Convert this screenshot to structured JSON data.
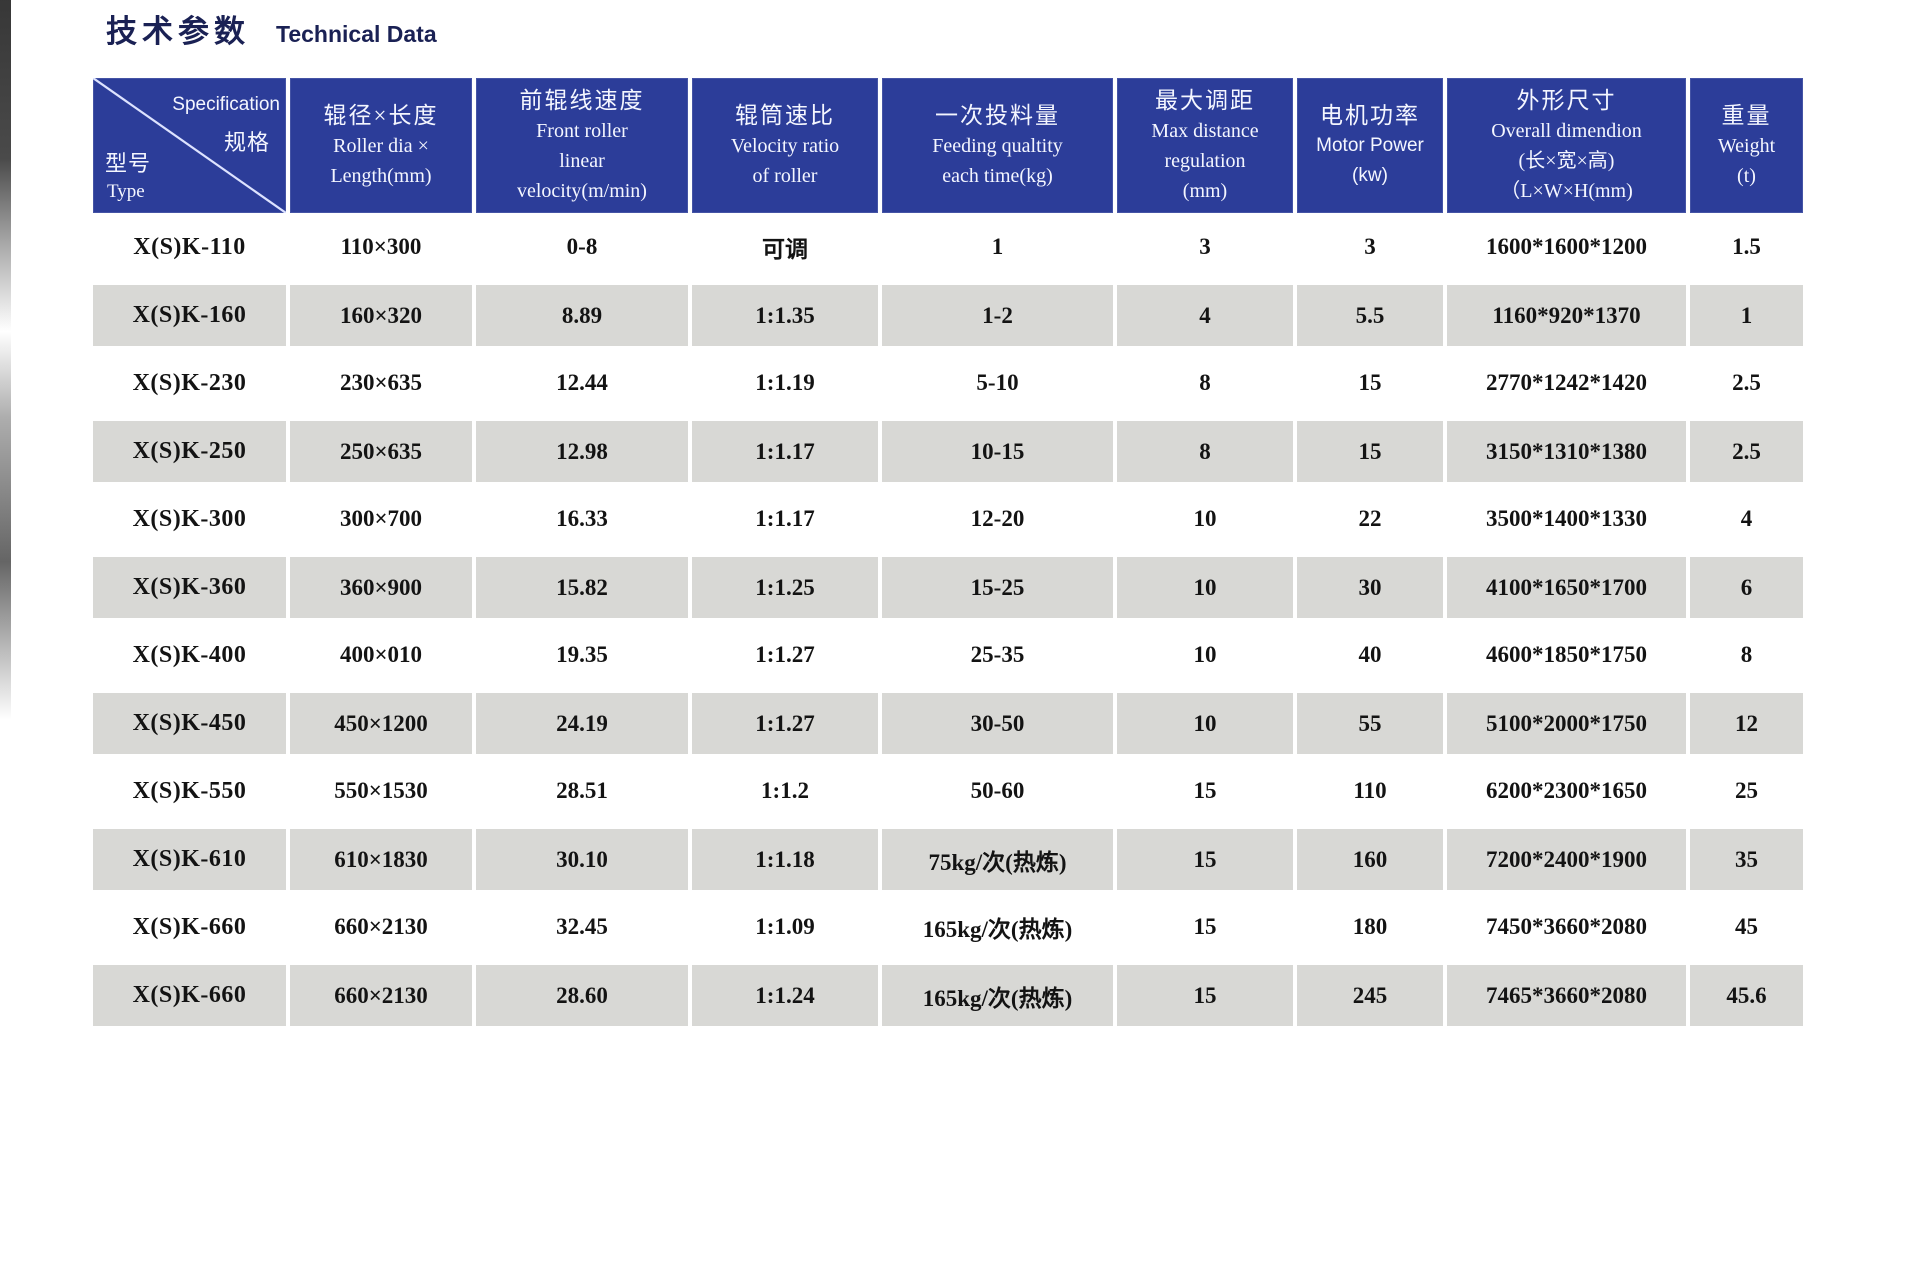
{
  "header": {
    "title_zh": "技术参数",
    "title_en": "Technical Data"
  },
  "colors": {
    "header_bg": "#2c3d99",
    "header_text": "#f4f6ff",
    "row_shade": "#d8d8d5",
    "title_color": "#1a2154",
    "body_text": "#131313"
  },
  "table": {
    "corner": {
      "spec_en": "Specification",
      "spec_zh": "规格",
      "type_zh": "型号",
      "type_en": "Type"
    },
    "columns": [
      {
        "zh": "辊径×长度",
        "en": [
          "Roller dia ×",
          "Length(mm)"
        ],
        "en_sans": false
      },
      {
        "zh": "前辊线速度",
        "en": [
          "Front roller",
          "linear",
          "velocity(m/min)"
        ],
        "en_sans": false
      },
      {
        "zh": "辊筒速比",
        "en": [
          "Velocity ratio",
          "of roller"
        ],
        "en_sans": false
      },
      {
        "zh": "一次投料量",
        "en": [
          "Feeding qualtity",
          "each time(kg)"
        ],
        "en_sans": false
      },
      {
        "zh": "最大调距",
        "en": [
          "Max distance",
          "regulation",
          "(mm)"
        ],
        "en_sans": false
      },
      {
        "zh": "电机功率",
        "en": [
          "Motor Power",
          "(kw)"
        ],
        "en_sans": true
      },
      {
        "zh": "外形尺寸",
        "en": [
          "Overall dimendion",
          "(长×宽×高)",
          "（L×W×H(mm)"
        ],
        "en_sans": false
      },
      {
        "zh": "重量",
        "en": [
          "Weight",
          "(t)"
        ],
        "en_sans": false
      }
    ],
    "rows": [
      {
        "shaded": false,
        "values": [
          "X(S)K-110",
          "110×300",
          "0-8",
          "可调",
          "1",
          "3",
          "3",
          "1600*1600*1200",
          "1.5"
        ]
      },
      {
        "shaded": true,
        "values": [
          "X(S)K-160",
          "160×320",
          "8.89",
          "1:1.35",
          "1-2",
          "4",
          "5.5",
          "1160*920*1370",
          "1"
        ]
      },
      {
        "shaded": false,
        "values": [
          "X(S)K-230",
          "230×635",
          "12.44",
          "1:1.19",
          "5-10",
          "8",
          "15",
          "2770*1242*1420",
          "2.5"
        ]
      },
      {
        "shaded": true,
        "values": [
          "X(S)K-250",
          "250×635",
          "12.98",
          "1:1.17",
          "10-15",
          "8",
          "15",
          "3150*1310*1380",
          "2.5"
        ]
      },
      {
        "shaded": false,
        "values": [
          "X(S)K-300",
          "300×700",
          "16.33",
          "1:1.17",
          "12-20",
          "10",
          "22",
          "3500*1400*1330",
          "4"
        ]
      },
      {
        "shaded": true,
        "values": [
          "X(S)K-360",
          "360×900",
          "15.82",
          "1:1.25",
          "15-25",
          "10",
          "30",
          "4100*1650*1700",
          "6"
        ]
      },
      {
        "shaded": false,
        "values": [
          "X(S)K-400",
          "400×010",
          "19.35",
          "1:1.27",
          "25-35",
          "10",
          "40",
          "4600*1850*1750",
          "8"
        ]
      },
      {
        "shaded": true,
        "values": [
          "X(S)K-450",
          "450×1200",
          "24.19",
          "1:1.27",
          "30-50",
          "10",
          "55",
          "5100*2000*1750",
          "12"
        ]
      },
      {
        "shaded": false,
        "values": [
          "X(S)K-550",
          "550×1530",
          "28.51",
          "1:1.2",
          "50-60",
          "15",
          "110",
          "6200*2300*1650",
          "25"
        ]
      },
      {
        "shaded": true,
        "values": [
          "X(S)K-610",
          "610×1830",
          "30.10",
          "1:1.18",
          "75kg/次(热炼)",
          "15",
          "160",
          "7200*2400*1900",
          "35"
        ]
      },
      {
        "shaded": false,
        "values": [
          "X(S)K-660",
          "660×2130",
          "32.45",
          "1:1.09",
          "165kg/次(热炼)",
          "15",
          "180",
          "7450*3660*2080",
          "45"
        ]
      },
      {
        "shaded": true,
        "values": [
          "X(S)K-660",
          "660×2130",
          "28.60",
          "1:1.24",
          "165kg/次(热炼)",
          "15",
          "245",
          "7465*3660*2080",
          "45.6"
        ]
      }
    ]
  }
}
